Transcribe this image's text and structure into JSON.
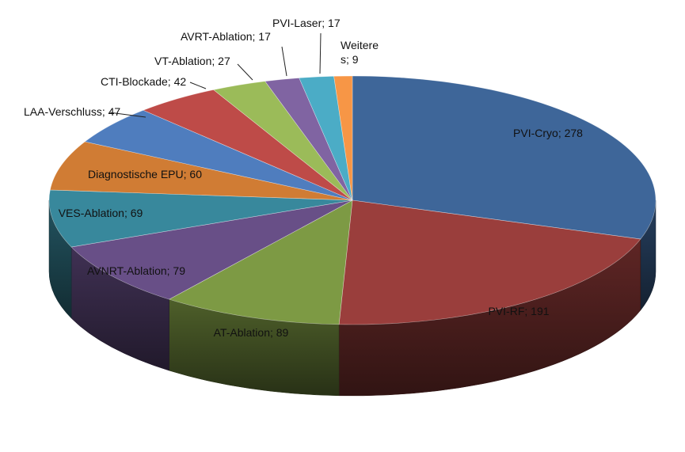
{
  "chart_data": {
    "type": "pie",
    "title": "",
    "categories": [
      "PVI-Cryo",
      "PVI-RF",
      "AT-Ablation",
      "AVNRT-Ablation",
      "VES-Ablation",
      "Diagnostische EPU",
      "LAA-Verschluss",
      "CTI-Blockade",
      "VT-Ablation",
      "AVRT-Ablation",
      "PVI-Laser",
      "Weitere s"
    ],
    "values": [
      278,
      191,
      89,
      79,
      69,
      60,
      47,
      42,
      27,
      17,
      17,
      9
    ],
    "colors": [
      "#3E6699",
      "#9A3E3C",
      "#7D9A44",
      "#684F87",
      "#38889C",
      "#D07C34",
      "#4F7DBE",
      "#BE4B48",
      "#9BBB59",
      "#8064A2",
      "#4BACC6",
      "#F79646"
    ],
    "labels": [
      "PVI-Cryo; 278",
      "PVI-RF; 191",
      "AT-Ablation; 89",
      "AVNRT-Ablation; 79",
      "VES-Ablation; 69",
      "Diagnostische EPU; 60",
      "LAA-Verschluss; 47",
      "CTI-Blockade; 42",
      "VT-Ablation; 27",
      "AVRT-Ablation; 17",
      "PVI-Laser; 17",
      [
        "Weitere",
        "s; 9"
      ]
    ],
    "legend": "none",
    "style": "3d-pie"
  }
}
